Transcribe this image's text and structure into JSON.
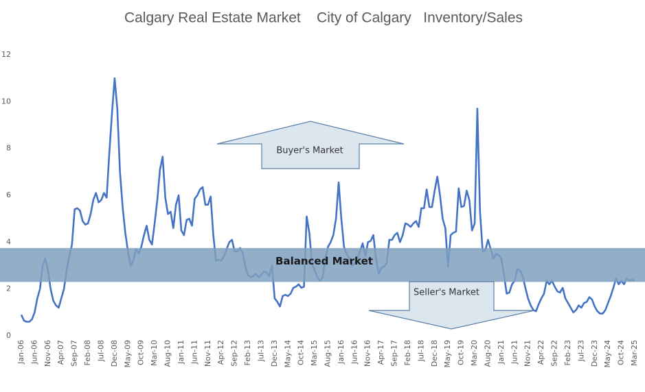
{
  "chart_data": {
    "type": "line",
    "title": "Calgary Real Estate Market    City of Calgary   Inventory/Sales",
    "categories": [
      "Jan-06",
      null,
      null,
      null,
      null,
      "Jun-06",
      null,
      null,
      null,
      null,
      "Nov-06",
      null,
      null,
      null,
      null,
      "Apr-07",
      null,
      null,
      null,
      null,
      "Sep-07",
      null,
      null,
      null,
      null,
      "Feb-08",
      null,
      null,
      null,
      null,
      "Jul-08",
      null,
      null,
      null,
      null,
      "Dec-08",
      null,
      null,
      null,
      null,
      "May-09",
      null,
      null,
      null,
      null,
      "Oct-09",
      null,
      null,
      null,
      null,
      "Mar-10",
      null,
      null,
      null,
      null,
      "Aug-10",
      null,
      null,
      null,
      null,
      "Jan-11",
      null,
      null,
      null,
      null,
      "Jun-11",
      null,
      null,
      null,
      null,
      "Nov-11",
      null,
      null,
      null,
      null,
      "Apr-12",
      null,
      null,
      null,
      null,
      "Sep-12",
      null,
      null,
      null,
      null,
      "Feb-13",
      null,
      null,
      null,
      null,
      "Jul-13",
      null,
      null,
      null,
      null,
      "Dec-13",
      null,
      null,
      null,
      null,
      "May-14",
      null,
      null,
      null,
      null,
      "Oct-14",
      null,
      null,
      null,
      null,
      "Mar-15",
      null,
      null,
      null,
      null,
      "Aug-15",
      null,
      null,
      null,
      null,
      "Jan-16",
      null,
      null,
      null,
      null,
      "Jun-16",
      null,
      null,
      null,
      null,
      "Nov-16",
      null,
      null,
      null,
      null,
      "Apr-17",
      null,
      null,
      null,
      null,
      "Sep-17",
      null,
      null,
      null,
      null,
      "Feb-18",
      null,
      null,
      null,
      null,
      "Jul-18",
      null,
      null,
      null,
      null,
      "Dec-18",
      null,
      null,
      null,
      null,
      "May-19",
      null,
      null,
      null,
      null,
      "Oct-19",
      null,
      null,
      null,
      null,
      "Mar-20",
      null,
      null,
      null,
      null,
      "Aug-20",
      null,
      null,
      null,
      null,
      "Jan-21",
      null,
      null,
      null,
      null,
      "Jun-21",
      null,
      null,
      null,
      null,
      "Nov-21",
      null,
      null,
      null,
      null,
      "Apr-22",
      null,
      null,
      null,
      null,
      "Sep-22",
      null,
      null,
      null,
      null,
      "Feb-23",
      null,
      null,
      null,
      null,
      "Jul-23",
      null,
      null,
      null,
      null,
      "Dec-23",
      null,
      null,
      null,
      null,
      "May-24",
      null,
      null,
      null,
      null,
      "Oct-24",
      null,
      null,
      null,
      null,
      "Mar-25"
    ],
    "values": [
      0.9,
      0.65,
      0.6,
      0.6,
      0.7,
      1.0,
      1.6,
      2.0,
      3.0,
      3.3,
      2.8,
      2.0,
      1.5,
      1.3,
      1.2,
      1.6,
      2.0,
      2.8,
      3.4,
      3.9,
      5.4,
      5.45,
      5.35,
      4.9,
      4.75,
      4.8,
      5.2,
      5.8,
      6.1,
      5.7,
      5.8,
      6.1,
      5.9,
      7.8,
      9.5,
      11.0,
      9.7,
      7.0,
      5.5,
      4.4,
      3.6,
      3.0,
      3.2,
      3.7,
      3.5,
      3.8,
      4.3,
      4.7,
      4.1,
      3.9,
      4.8,
      5.8,
      7.1,
      7.65,
      5.9,
      5.2,
      5.3,
      4.6,
      5.6,
      6.0,
      4.5,
      4.3,
      4.95,
      5.0,
      4.7,
      5.85,
      6.0,
      6.25,
      6.35,
      5.6,
      5.6,
      5.95,
      4.3,
      3.2,
      3.25,
      3.2,
      3.4,
      3.7,
      4.0,
      4.1,
      3.6,
      3.6,
      3.75,
      3.55,
      2.95,
      2.6,
      2.5,
      2.55,
      2.65,
      2.5,
      2.6,
      2.75,
      2.7,
      2.55,
      3.0,
      1.6,
      1.45,
      1.25,
      1.7,
      1.75,
      1.7,
      1.8,
      2.05,
      2.1,
      2.2,
      2.05,
      2.1,
      5.1,
      4.4,
      3.1,
      2.8,
      2.5,
      2.35,
      2.5,
      3.3,
      3.8,
      4.0,
      4.3,
      5.0,
      6.55,
      5.0,
      3.8,
      3.5,
      3.3,
      3.0,
      3.1,
      3.3,
      3.6,
      3.95,
      3.4,
      4.0,
      4.05,
      4.3,
      3.3,
      2.65,
      2.9,
      2.95,
      3.1,
      4.1,
      4.1,
      4.3,
      4.4,
      4.0,
      4.3,
      4.8,
      4.75,
      4.65,
      4.8,
      4.9,
      4.65,
      5.45,
      5.45,
      6.25,
      5.5,
      5.5,
      6.2,
      6.8,
      6.0,
      5.0,
      4.6,
      2.95,
      4.3,
      4.4,
      4.45,
      6.3,
      5.5,
      5.55,
      6.2,
      5.8,
      4.5,
      4.8,
      9.7,
      5.3,
      3.6,
      3.65,
      4.1,
      3.7,
      3.3,
      3.5,
      3.45,
      3.3,
      2.6,
      1.8,
      1.85,
      2.2,
      2.35,
      2.85,
      2.8,
      2.55,
      2.05,
      1.6,
      1.3,
      1.1,
      1.05,
      1.35,
      1.6,
      1.8,
      2.35,
      2.2,
      2.35,
      2.1,
      1.9,
      1.85,
      2.05,
      1.6,
      1.4,
      1.2,
      1.0,
      1.1,
      1.3,
      1.2,
      1.4,
      1.45,
      1.65,
      1.55,
      1.25,
      1.05,
      0.95,
      0.95,
      1.1,
      1.4,
      1.7,
      2.05,
      2.45,
      2.2,
      2.35,
      2.2,
      2.45,
      2.35,
      2.4,
      2.35
    ],
    "color": "#4472c4",
    "ylim": [
      0,
      12
    ],
    "yticks": [
      0,
      2,
      4,
      6,
      8,
      10,
      12
    ],
    "band": {
      "label": "Balanced Market",
      "range": [
        2.3,
        3.75
      ],
      "color": "#7fa0c0"
    },
    "annotations": [
      "Buyer's Market",
      "Seller's Market"
    ]
  }
}
